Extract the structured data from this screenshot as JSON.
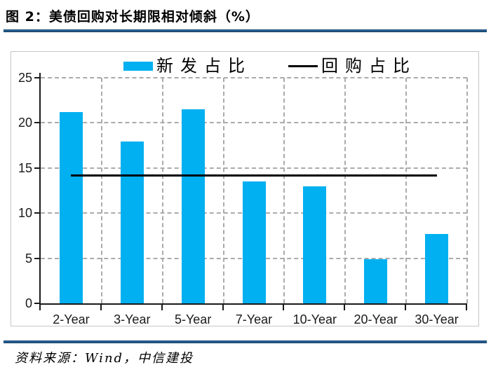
{
  "header": {
    "title": "图 2：美债回购对长期限相对倾斜（%）"
  },
  "legend": {
    "bar_label": "新发占比",
    "line_label": "回购占比"
  },
  "footer": {
    "source": "资料来源：Wind，中信建投"
  },
  "colors": {
    "bar": "#00b0f0",
    "line": "#000000",
    "axis": "#1a1a1a",
    "grid": "#ababab",
    "rule": "#1f4e79"
  },
  "chart_data": {
    "type": "bar",
    "title": "图 2：美债回购对长期限相对倾斜（%）",
    "categories": [
      "2-Year",
      "3-Year",
      "5-Year",
      "7-Year",
      "10-Year",
      "20-Year",
      "30-Year"
    ],
    "series": [
      {
        "name": "新发占比",
        "type": "bar",
        "values": [
          21.2,
          17.9,
          21.5,
          13.5,
          13.0,
          4.9,
          7.7
        ]
      },
      {
        "name": "回购占比",
        "type": "line",
        "values": [
          14.2,
          14.2,
          14.2,
          14.2,
          14.2,
          14.2,
          14.2
        ]
      }
    ],
    "xlabel": "",
    "ylabel": "",
    "ylim": [
      0,
      25
    ],
    "yticks": [
      0,
      5,
      10,
      15,
      20,
      25
    ],
    "grid": true,
    "legend_position": "top"
  }
}
